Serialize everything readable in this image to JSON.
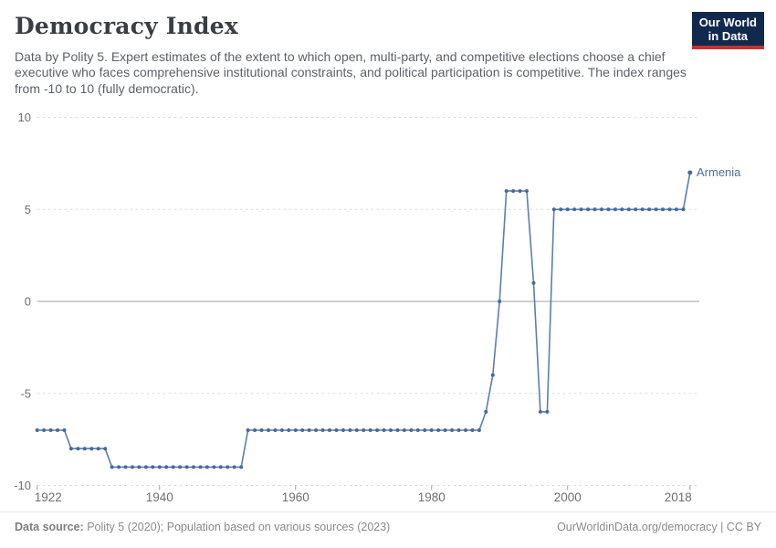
{
  "header": {
    "title": "Democracy Index",
    "subtitle": "Data by Polity 5. Expert estimates of the extent to which open, multi-party, and competitive elections choose a chief executive who faces comprehensive institutional constraints, and political participation is competitive. The index ranges from -10 to 10 (fully democratic)."
  },
  "logo": {
    "line1": "Our World",
    "line2": "in Data",
    "bg_color": "#12294E",
    "accent_color": "#C5332D",
    "text_color": "#FFFFFF"
  },
  "chart_data": {
    "type": "line",
    "title": "Democracy Index",
    "xlabel": "",
    "ylabel": "",
    "ylim": [
      -10,
      10
    ],
    "yticks": [
      10,
      5,
      0,
      -5,
      -10
    ],
    "xticks": [
      1922,
      1940,
      1960,
      1980,
      2000,
      2018
    ],
    "grid": "horizontal dashed gridlines; solid gray line at 0",
    "legend_position": "end-of-line label",
    "start_year": 1922,
    "end_year": 2018,
    "series": [
      {
        "name": "Armenia",
        "color": "#4C6EA8",
        "values": [
          -7,
          -7,
          -7,
          -7,
          -7,
          -8,
          -8,
          -8,
          -8,
          -8,
          -8,
          -9,
          -9,
          -9,
          -9,
          -9,
          -9,
          -9,
          -9,
          -9,
          -9,
          -9,
          -9,
          -9,
          -9,
          -9,
          -9,
          -9,
          -9,
          -9,
          -9,
          -7,
          -7,
          -7,
          -7,
          -7,
          -7,
          -7,
          -7,
          -7,
          -7,
          -7,
          -7,
          -7,
          -7,
          -7,
          -7,
          -7,
          -7,
          -7,
          -7,
          -7,
          -7,
          -7,
          -7,
          -7,
          -7,
          -7,
          -7,
          -7,
          -7,
          -7,
          -7,
          -7,
          -7,
          -7,
          -6,
          -4,
          0,
          6,
          6,
          6,
          6,
          1,
          -6,
          -6,
          5,
          5,
          5,
          5,
          5,
          5,
          5,
          5,
          5,
          5,
          5,
          5,
          5,
          5,
          5,
          5,
          5,
          5,
          5,
          5,
          7
        ]
      }
    ],
    "segments_summary": [
      {
        "years": "1922-1926",
        "value": -7
      },
      {
        "years": "1927-1932",
        "value": -8
      },
      {
        "years": "1933-1952",
        "value": -9
      },
      {
        "years": "1953-1987",
        "value": -7
      },
      {
        "years": "1988",
        "value": -6
      },
      {
        "years": "1989",
        "value": -4
      },
      {
        "years": "1990",
        "value": 0
      },
      {
        "years": "1991-1994",
        "value": 6
      },
      {
        "years": "1995",
        "value": 1
      },
      {
        "years": "1996-1997",
        "value": -6
      },
      {
        "years": "1998-2017",
        "value": 5
      },
      {
        "years": "2018",
        "value": 7
      }
    ]
  },
  "axes": {
    "ytick_labels": [
      "10",
      "5",
      "0",
      "-5",
      "-10"
    ],
    "xtick_labels": [
      "1922",
      "1940",
      "1960",
      "1980",
      "2000",
      "2018"
    ]
  },
  "colors": {
    "line": "#5C7DB2",
    "dot": "#46689F",
    "series_label": "#4C6EA8",
    "gridline": "#D8D8D8",
    "zero_line": "#A0A0A0",
    "tick_text": "#6E6E6E",
    "title_text": "#383E44",
    "subtitle_text": "#5B6166",
    "footer_text": "#8A8A8A"
  },
  "footer": {
    "source_label": "Data source:",
    "source_text": " Polity 5 (2020); Population based on various sources (2023)",
    "right_text": "OurWorldinData.org/democracy | CC BY"
  }
}
